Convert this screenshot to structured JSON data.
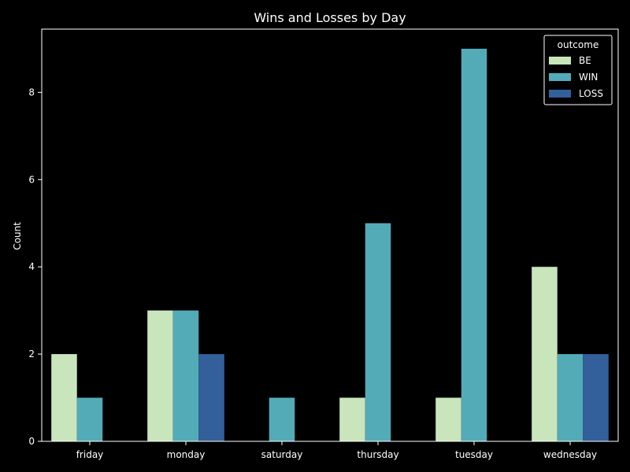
{
  "colors": {
    "background": "#000000",
    "foreground": "#ffffff"
  },
  "chart_data": {
    "type": "bar",
    "title": "Wins and Losses by Day",
    "xlabel": "",
    "ylabel": "Count",
    "categories": [
      "friday",
      "monday",
      "saturday",
      "thursday",
      "tuesday",
      "wednesday"
    ],
    "yticks": [
      0,
      2,
      4,
      6,
      8
    ],
    "ylim": [
      0,
      9.45
    ],
    "grid": false,
    "legend": {
      "title": "outcome",
      "placement": "top-right"
    },
    "series": [
      {
        "name": "BE",
        "color": "#c9e5bc",
        "values": [
          2,
          3,
          null,
          1,
          1,
          4
        ]
      },
      {
        "name": "WIN",
        "color": "#53abb7",
        "values": [
          1,
          3,
          1,
          5,
          9,
          2
        ]
      },
      {
        "name": "LOSS",
        "color": "#335f9a",
        "values": [
          null,
          2,
          null,
          null,
          null,
          2
        ]
      }
    ]
  }
}
